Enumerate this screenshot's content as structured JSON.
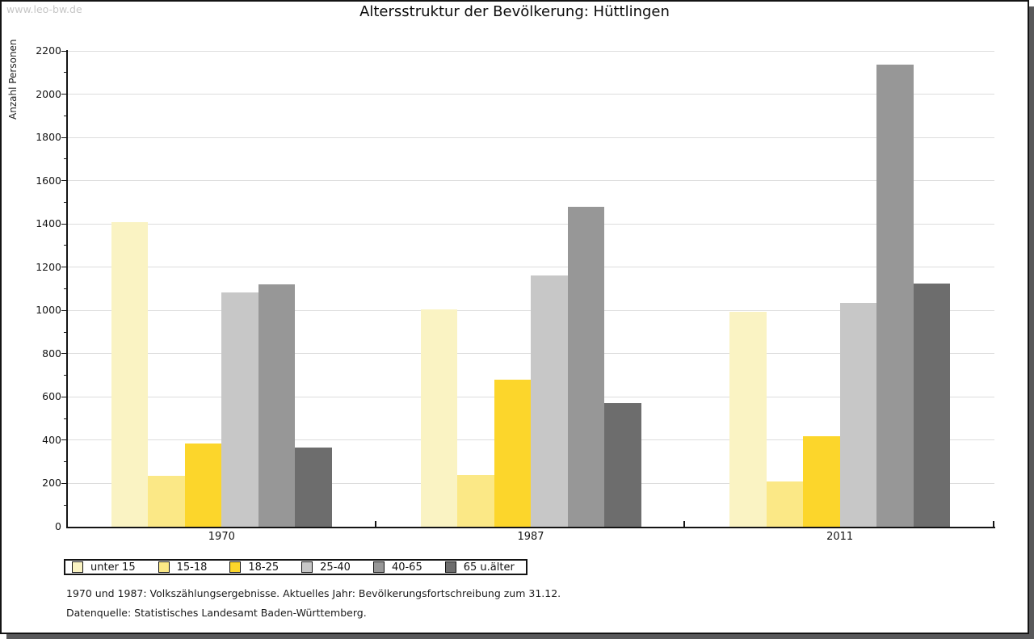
{
  "watermark": "www.leo-bw.de",
  "title": "Altersstruktur der Bevölkerung: Hüttlingen",
  "chart_data": {
    "type": "bar",
    "title": "Altersstruktur der Bevölkerung: Hüttlingen",
    "xlabel": "",
    "ylabel": "Anzahl Personen",
    "categories": [
      "1970",
      "1987",
      "2011"
    ],
    "series": [
      {
        "name": "unter 15",
        "color": "#FAF3C3",
        "values": [
          1410,
          1005,
          995
        ]
      },
      {
        "name": "15-18",
        "color": "#FBE886",
        "values": [
          235,
          240,
          210
        ]
      },
      {
        "name": "18-25",
        "color": "#FCD62B",
        "values": [
          385,
          680,
          420
        ]
      },
      {
        "name": "25-40",
        "color": "#C7C7C7",
        "values": [
          1085,
          1160,
          1035
        ]
      },
      {
        "name": "40-65",
        "color": "#979797",
        "values": [
          1120,
          1480,
          2135
        ]
      },
      {
        "name": "65 u.älter",
        "color": "#6D6D6D",
        "values": [
          365,
          570,
          1125
        ]
      }
    ],
    "ylim": [
      0,
      2200
    ],
    "ytick_step": 200,
    "yticks": [
      0,
      200,
      400,
      600,
      800,
      1000,
      1200,
      1400,
      1600,
      1800,
      2000,
      2200
    ],
    "grid": "horizontal-major-only",
    "legend_position": "bottom-left",
    "gridline_color": "#dddddd"
  },
  "footnotes": [
    "1970 und 1987: Volkszählungsergebnisse. Aktuelles Jahr: Bevölkerungsfortschreibung zum 31.12.",
    "Datenquelle: Statistisches Landesamt Baden-Württemberg."
  ]
}
